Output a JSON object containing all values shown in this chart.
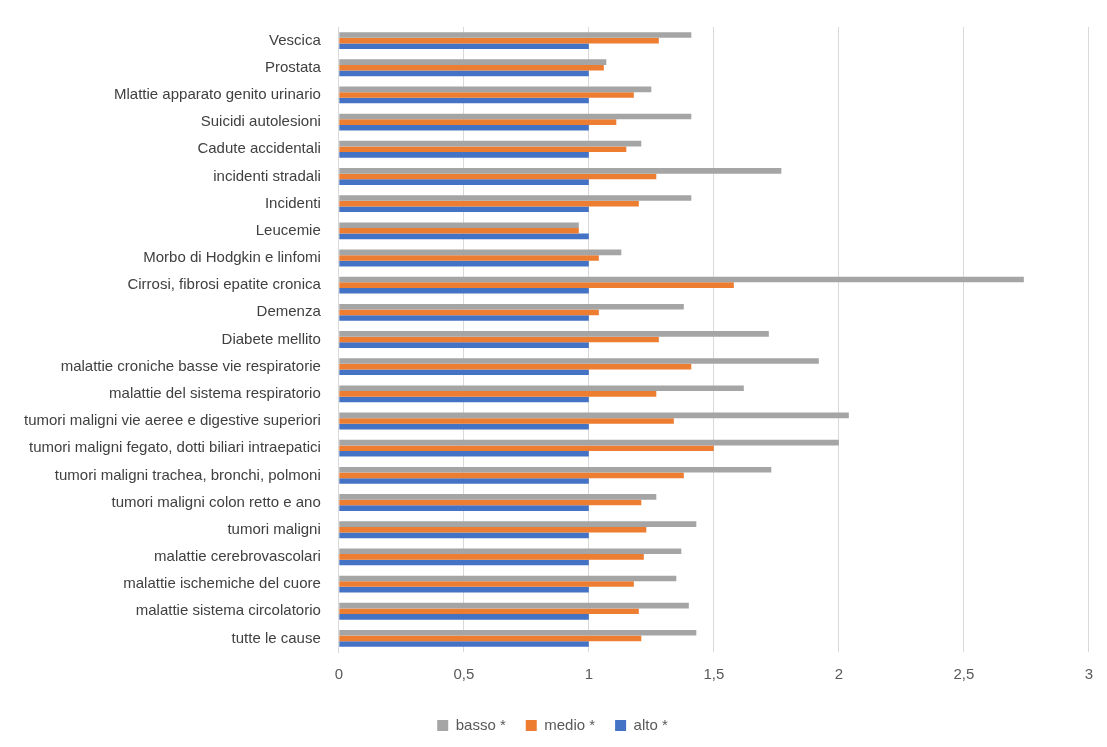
{
  "chart_data": {
    "type": "bar",
    "orientation": "horizontal",
    "categories": [
      "Vescica",
      "Prostata",
      "Mlattie apparato genito urinario",
      "Suicidi autolesioni",
      "Cadute accidentali",
      "incidenti stradali",
      "Incidenti",
      "Leucemie",
      "Morbo di Hodgkin e linfomi",
      "Cirrosi, fibrosi epatite cronica",
      "Demenza",
      "Diabete mellito",
      "malattie croniche basse vie respiratorie",
      "malattie del sistema respiratorio",
      "tumori maligni vie aeree e digestive superiori",
      "tumori maligni fegato, dotti biliari intraepatici",
      "tumori maligni trachea, bronchi, polmoni",
      "tumori maligni colon retto e ano",
      "tumori maligni",
      "malattie cerebrovascolari",
      "malattie ischemiche del cuore",
      "malattie sistema circolatorio",
      "tutte le cause"
    ],
    "series": [
      {
        "name": "basso *",
        "color": "#a5a5a5",
        "values": [
          1.41,
          1.07,
          1.25,
          1.41,
          1.21,
          1.77,
          1.41,
          0.96,
          1.13,
          2.74,
          1.38,
          1.72,
          1.92,
          1.62,
          2.04,
          2.0,
          1.73,
          1.27,
          1.43,
          1.37,
          1.35,
          1.4,
          1.43
        ]
      },
      {
        "name": "medio *",
        "color": "#ed7d31",
        "values": [
          1.28,
          1.06,
          1.18,
          1.11,
          1.15,
          1.27,
          1.2,
          0.96,
          1.04,
          1.58,
          1.04,
          1.28,
          1.41,
          1.27,
          1.34,
          1.5,
          1.38,
          1.21,
          1.23,
          1.22,
          1.18,
          1.2,
          1.21
        ]
      },
      {
        "name": "alto *",
        "color": "#4472c4",
        "values": [
          1,
          1,
          1,
          1,
          1,
          1,
          1,
          1,
          1,
          1,
          1,
          1,
          1,
          1,
          1,
          1,
          1,
          1,
          1,
          1,
          1,
          1,
          1
        ]
      }
    ],
    "xlim": [
      0,
      3
    ],
    "xticks": [
      0,
      {
        "value": 0.5,
        "label": "0,5"
      },
      1,
      {
        "value": 1.5,
        "label": "1,5"
      },
      2,
      {
        "value": 2.5,
        "label": "2,5"
      },
      3
    ],
    "grid": "x",
    "legend": "bottom"
  }
}
